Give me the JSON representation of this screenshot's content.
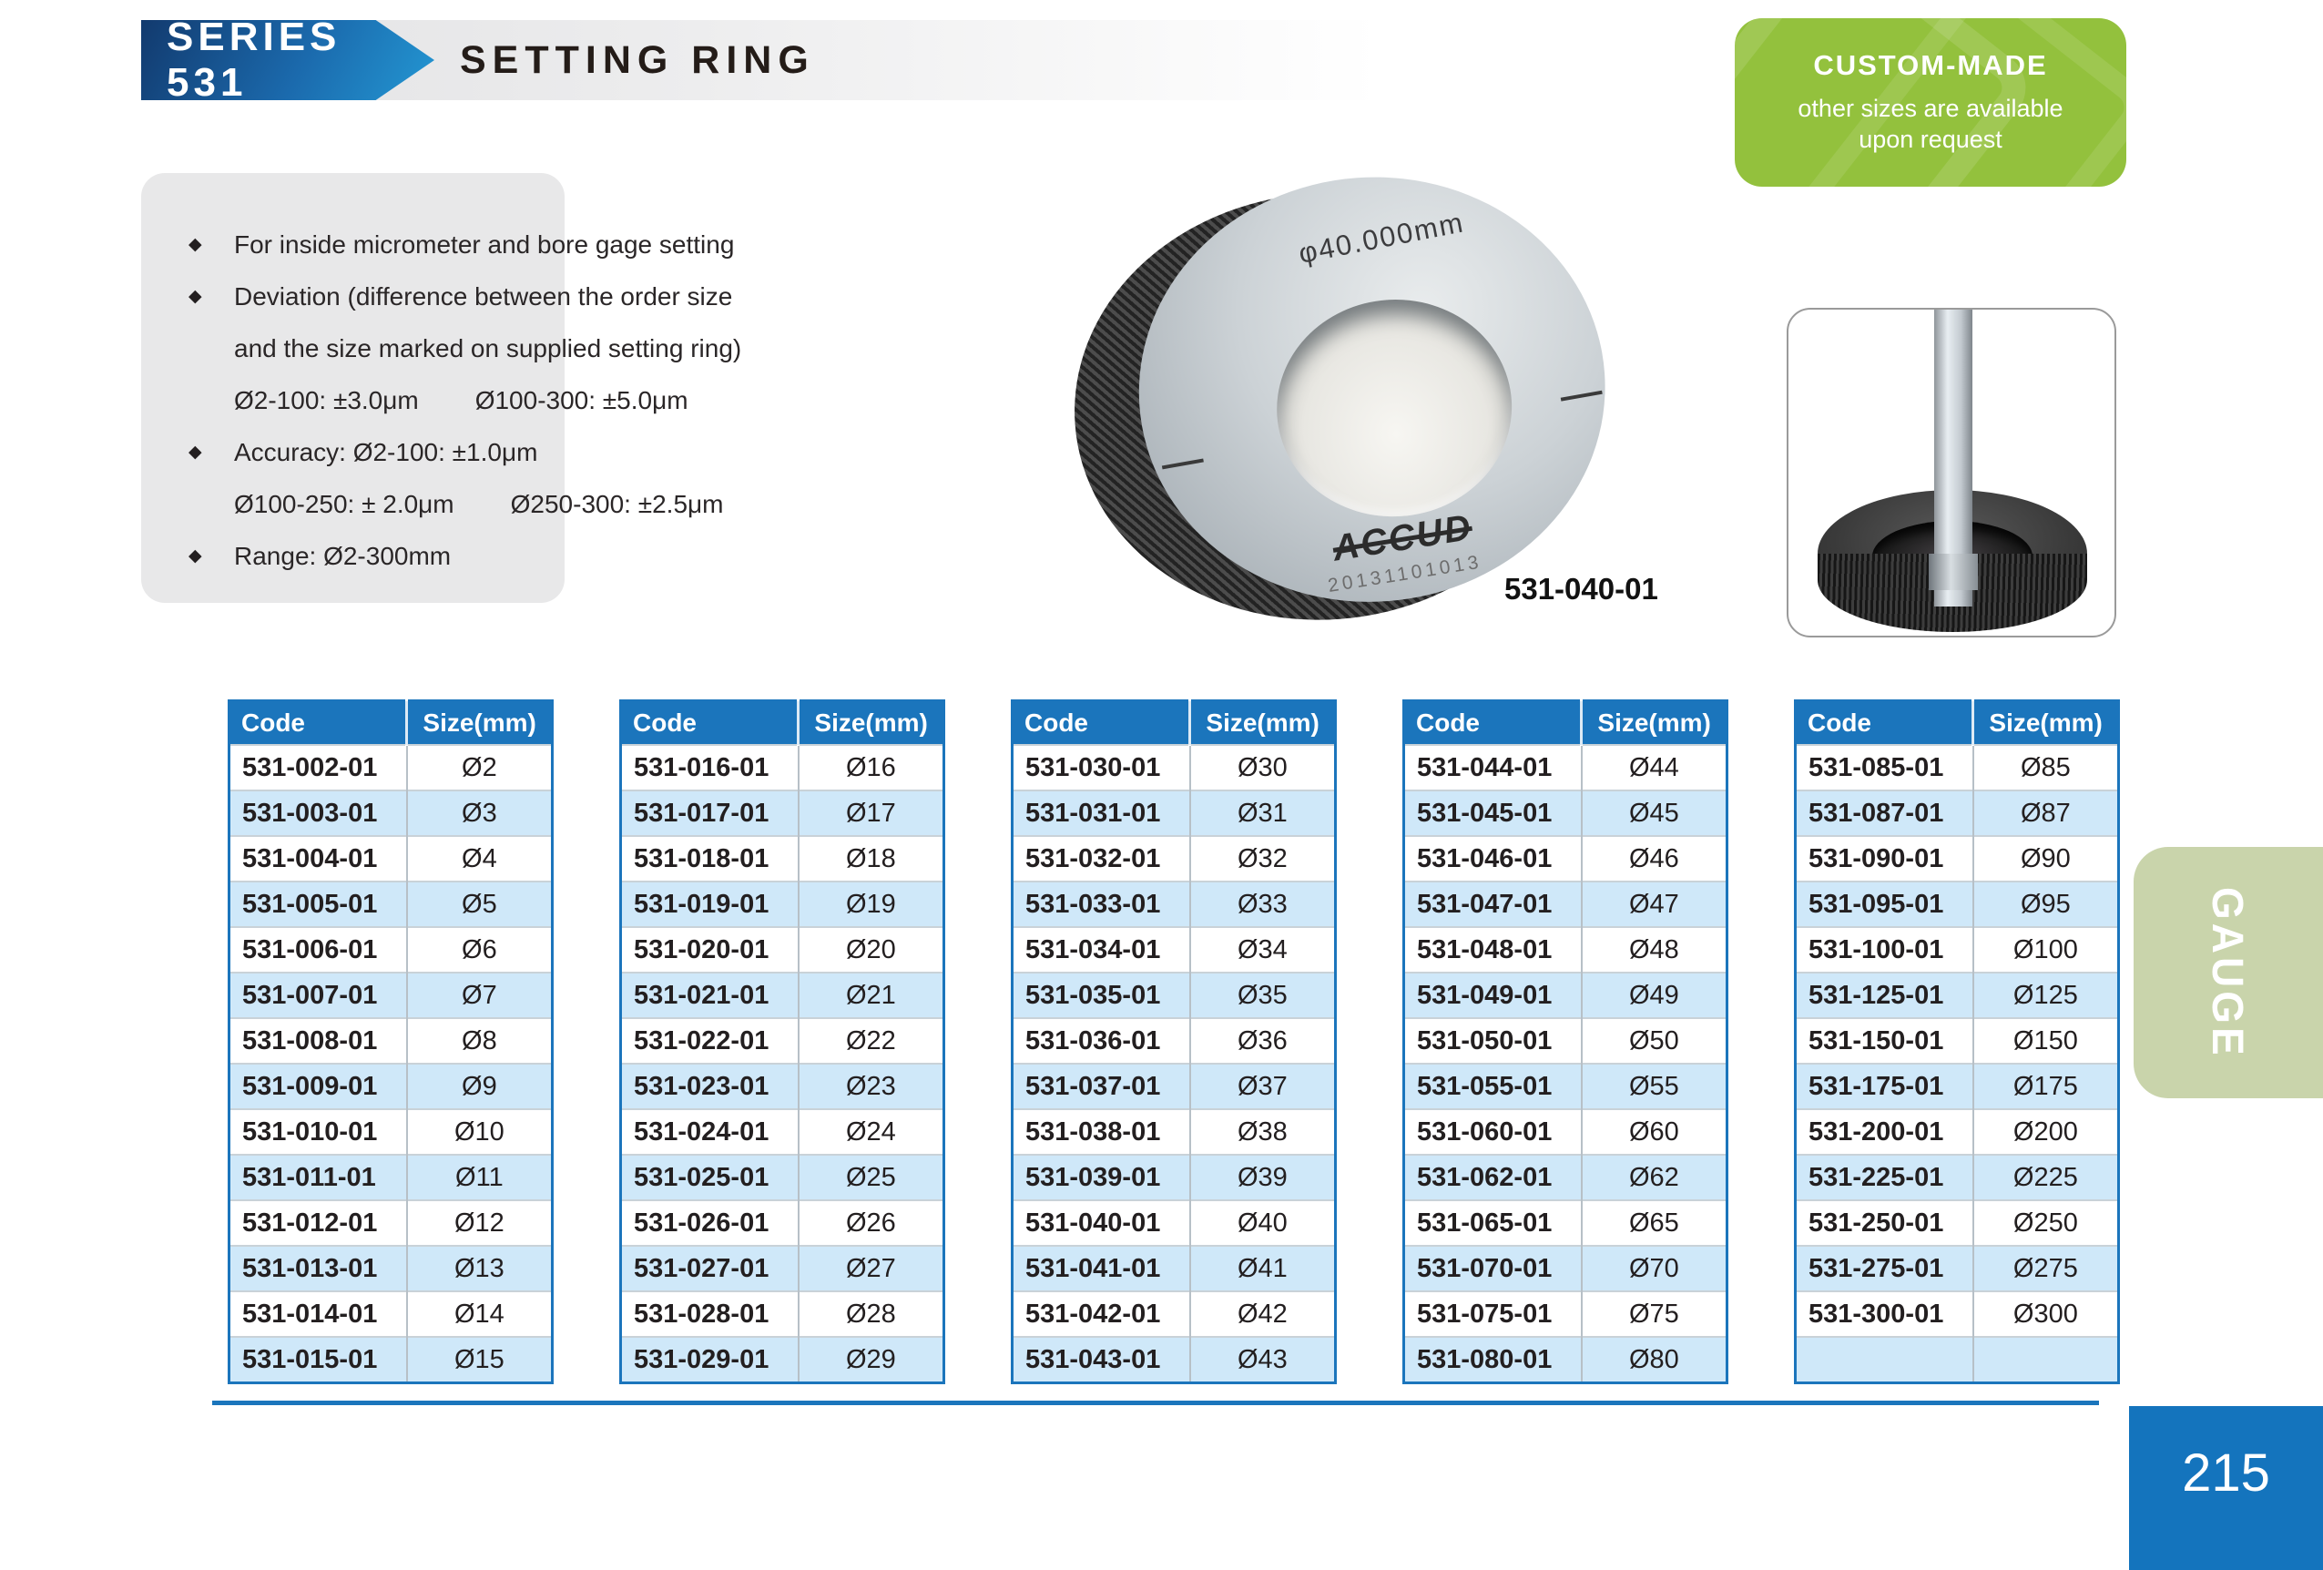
{
  "header": {
    "series_label": "SERIES 531",
    "title": "SETTING RING"
  },
  "badge": {
    "title": "CUSTOM-MADE",
    "line1": "other sizes are available",
    "line2": "upon request"
  },
  "features": {
    "lines": [
      {
        "bullet": true,
        "parts": [
          "For inside micrometer and bore gage setting"
        ]
      },
      {
        "bullet": true,
        "parts": [
          "Deviation (difference between the order size"
        ]
      },
      {
        "bullet": false,
        "parts": [
          "and the size marked on supplied setting ring)"
        ]
      },
      {
        "bullet": false,
        "parts": [
          "Ø2-100: ±3.0μm",
          "Ø100-300: ±5.0μm"
        ]
      },
      {
        "bullet": true,
        "parts": [
          "Accuracy: Ø2-100:  ±1.0μm"
        ]
      },
      {
        "bullet": false,
        "parts": [
          "Ø100-250: ± 2.0μm",
          "Ø250-300:  ±2.5μm"
        ]
      },
      {
        "bullet": true,
        "parts": [
          "Range: Ø2-300mm"
        ]
      }
    ]
  },
  "product": {
    "marking": "φ40.000mm",
    "brand": "ACCUD",
    "serial": "20131101013",
    "caption": "531-040-01"
  },
  "tables": [
    {
      "headers": [
        "Code",
        "Size(mm)"
      ],
      "rows": [
        [
          "531-002-01",
          "Ø2"
        ],
        [
          "531-003-01",
          "Ø3"
        ],
        [
          "531-004-01",
          "Ø4"
        ],
        [
          "531-005-01",
          "Ø5"
        ],
        [
          "531-006-01",
          "Ø6"
        ],
        [
          "531-007-01",
          "Ø7"
        ],
        [
          "531-008-01",
          "Ø8"
        ],
        [
          "531-009-01",
          "Ø9"
        ],
        [
          "531-010-01",
          "Ø10"
        ],
        [
          "531-011-01",
          "Ø11"
        ],
        [
          "531-012-01",
          "Ø12"
        ],
        [
          "531-013-01",
          "Ø13"
        ],
        [
          "531-014-01",
          "Ø14"
        ],
        [
          "531-015-01",
          "Ø15"
        ]
      ]
    },
    {
      "headers": [
        "Code",
        "Size(mm)"
      ],
      "rows": [
        [
          "531-016-01",
          "Ø16"
        ],
        [
          "531-017-01",
          "Ø17"
        ],
        [
          "531-018-01",
          "Ø18"
        ],
        [
          "531-019-01",
          "Ø19"
        ],
        [
          "531-020-01",
          "Ø20"
        ],
        [
          "531-021-01",
          "Ø21"
        ],
        [
          "531-022-01",
          "Ø22"
        ],
        [
          "531-023-01",
          "Ø23"
        ],
        [
          "531-024-01",
          "Ø24"
        ],
        [
          "531-025-01",
          "Ø25"
        ],
        [
          "531-026-01",
          "Ø26"
        ],
        [
          "531-027-01",
          "Ø27"
        ],
        [
          "531-028-01",
          "Ø28"
        ],
        [
          "531-029-01",
          "Ø29"
        ]
      ]
    },
    {
      "headers": [
        "Code",
        "Size(mm)"
      ],
      "rows": [
        [
          "531-030-01",
          "Ø30"
        ],
        [
          "531-031-01",
          "Ø31"
        ],
        [
          "531-032-01",
          "Ø32"
        ],
        [
          "531-033-01",
          "Ø33"
        ],
        [
          "531-034-01",
          "Ø34"
        ],
        [
          "531-035-01",
          "Ø35"
        ],
        [
          "531-036-01",
          "Ø36"
        ],
        [
          "531-037-01",
          "Ø37"
        ],
        [
          "531-038-01",
          "Ø38"
        ],
        [
          "531-039-01",
          "Ø39"
        ],
        [
          "531-040-01",
          "Ø40"
        ],
        [
          "531-041-01",
          "Ø41"
        ],
        [
          "531-042-01",
          "Ø42"
        ],
        [
          "531-043-01",
          "Ø43"
        ]
      ]
    },
    {
      "headers": [
        "Code",
        "Size(mm)"
      ],
      "rows": [
        [
          "531-044-01",
          "Ø44"
        ],
        [
          "531-045-01",
          "Ø45"
        ],
        [
          "531-046-01",
          "Ø46"
        ],
        [
          "531-047-01",
          "Ø47"
        ],
        [
          "531-048-01",
          "Ø48"
        ],
        [
          "531-049-01",
          "Ø49"
        ],
        [
          "531-050-01",
          "Ø50"
        ],
        [
          "531-055-01",
          "Ø55"
        ],
        [
          "531-060-01",
          "Ø60"
        ],
        [
          "531-062-01",
          "Ø62"
        ],
        [
          "531-065-01",
          "Ø65"
        ],
        [
          "531-070-01",
          "Ø70"
        ],
        [
          "531-075-01",
          "Ø75"
        ],
        [
          "531-080-01",
          "Ø80"
        ]
      ]
    },
    {
      "headers": [
        "Code",
        "Size(mm)"
      ],
      "rows": [
        [
          "531-085-01",
          "Ø85"
        ],
        [
          "531-087-01",
          "Ø87"
        ],
        [
          "531-090-01",
          "Ø90"
        ],
        [
          "531-095-01",
          "Ø95"
        ],
        [
          "531-100-01",
          "Ø100"
        ],
        [
          "531-125-01",
          "Ø125"
        ],
        [
          "531-150-01",
          "Ø150"
        ],
        [
          "531-175-01",
          "Ø175"
        ],
        [
          "531-200-01",
          "Ø200"
        ],
        [
          "531-225-01",
          "Ø225"
        ],
        [
          "531-250-01",
          "Ø250"
        ],
        [
          "531-275-01",
          "Ø275"
        ],
        [
          "531-300-01",
          "Ø300"
        ],
        [
          "",
          ""
        ]
      ]
    }
  ],
  "sidebar": {
    "tab_label": "GAUGE"
  },
  "footer": {
    "page_number": "215"
  },
  "colors": {
    "accent_blue": "#1b75bc",
    "banner_blue_dark": "#123a6e",
    "banner_blue_light": "#2397d3",
    "row_alt_blue": "#cfe8f9",
    "badge_green": "#93c13d",
    "tab_green": "#c9d4ab",
    "text_dark": "#231f20"
  }
}
